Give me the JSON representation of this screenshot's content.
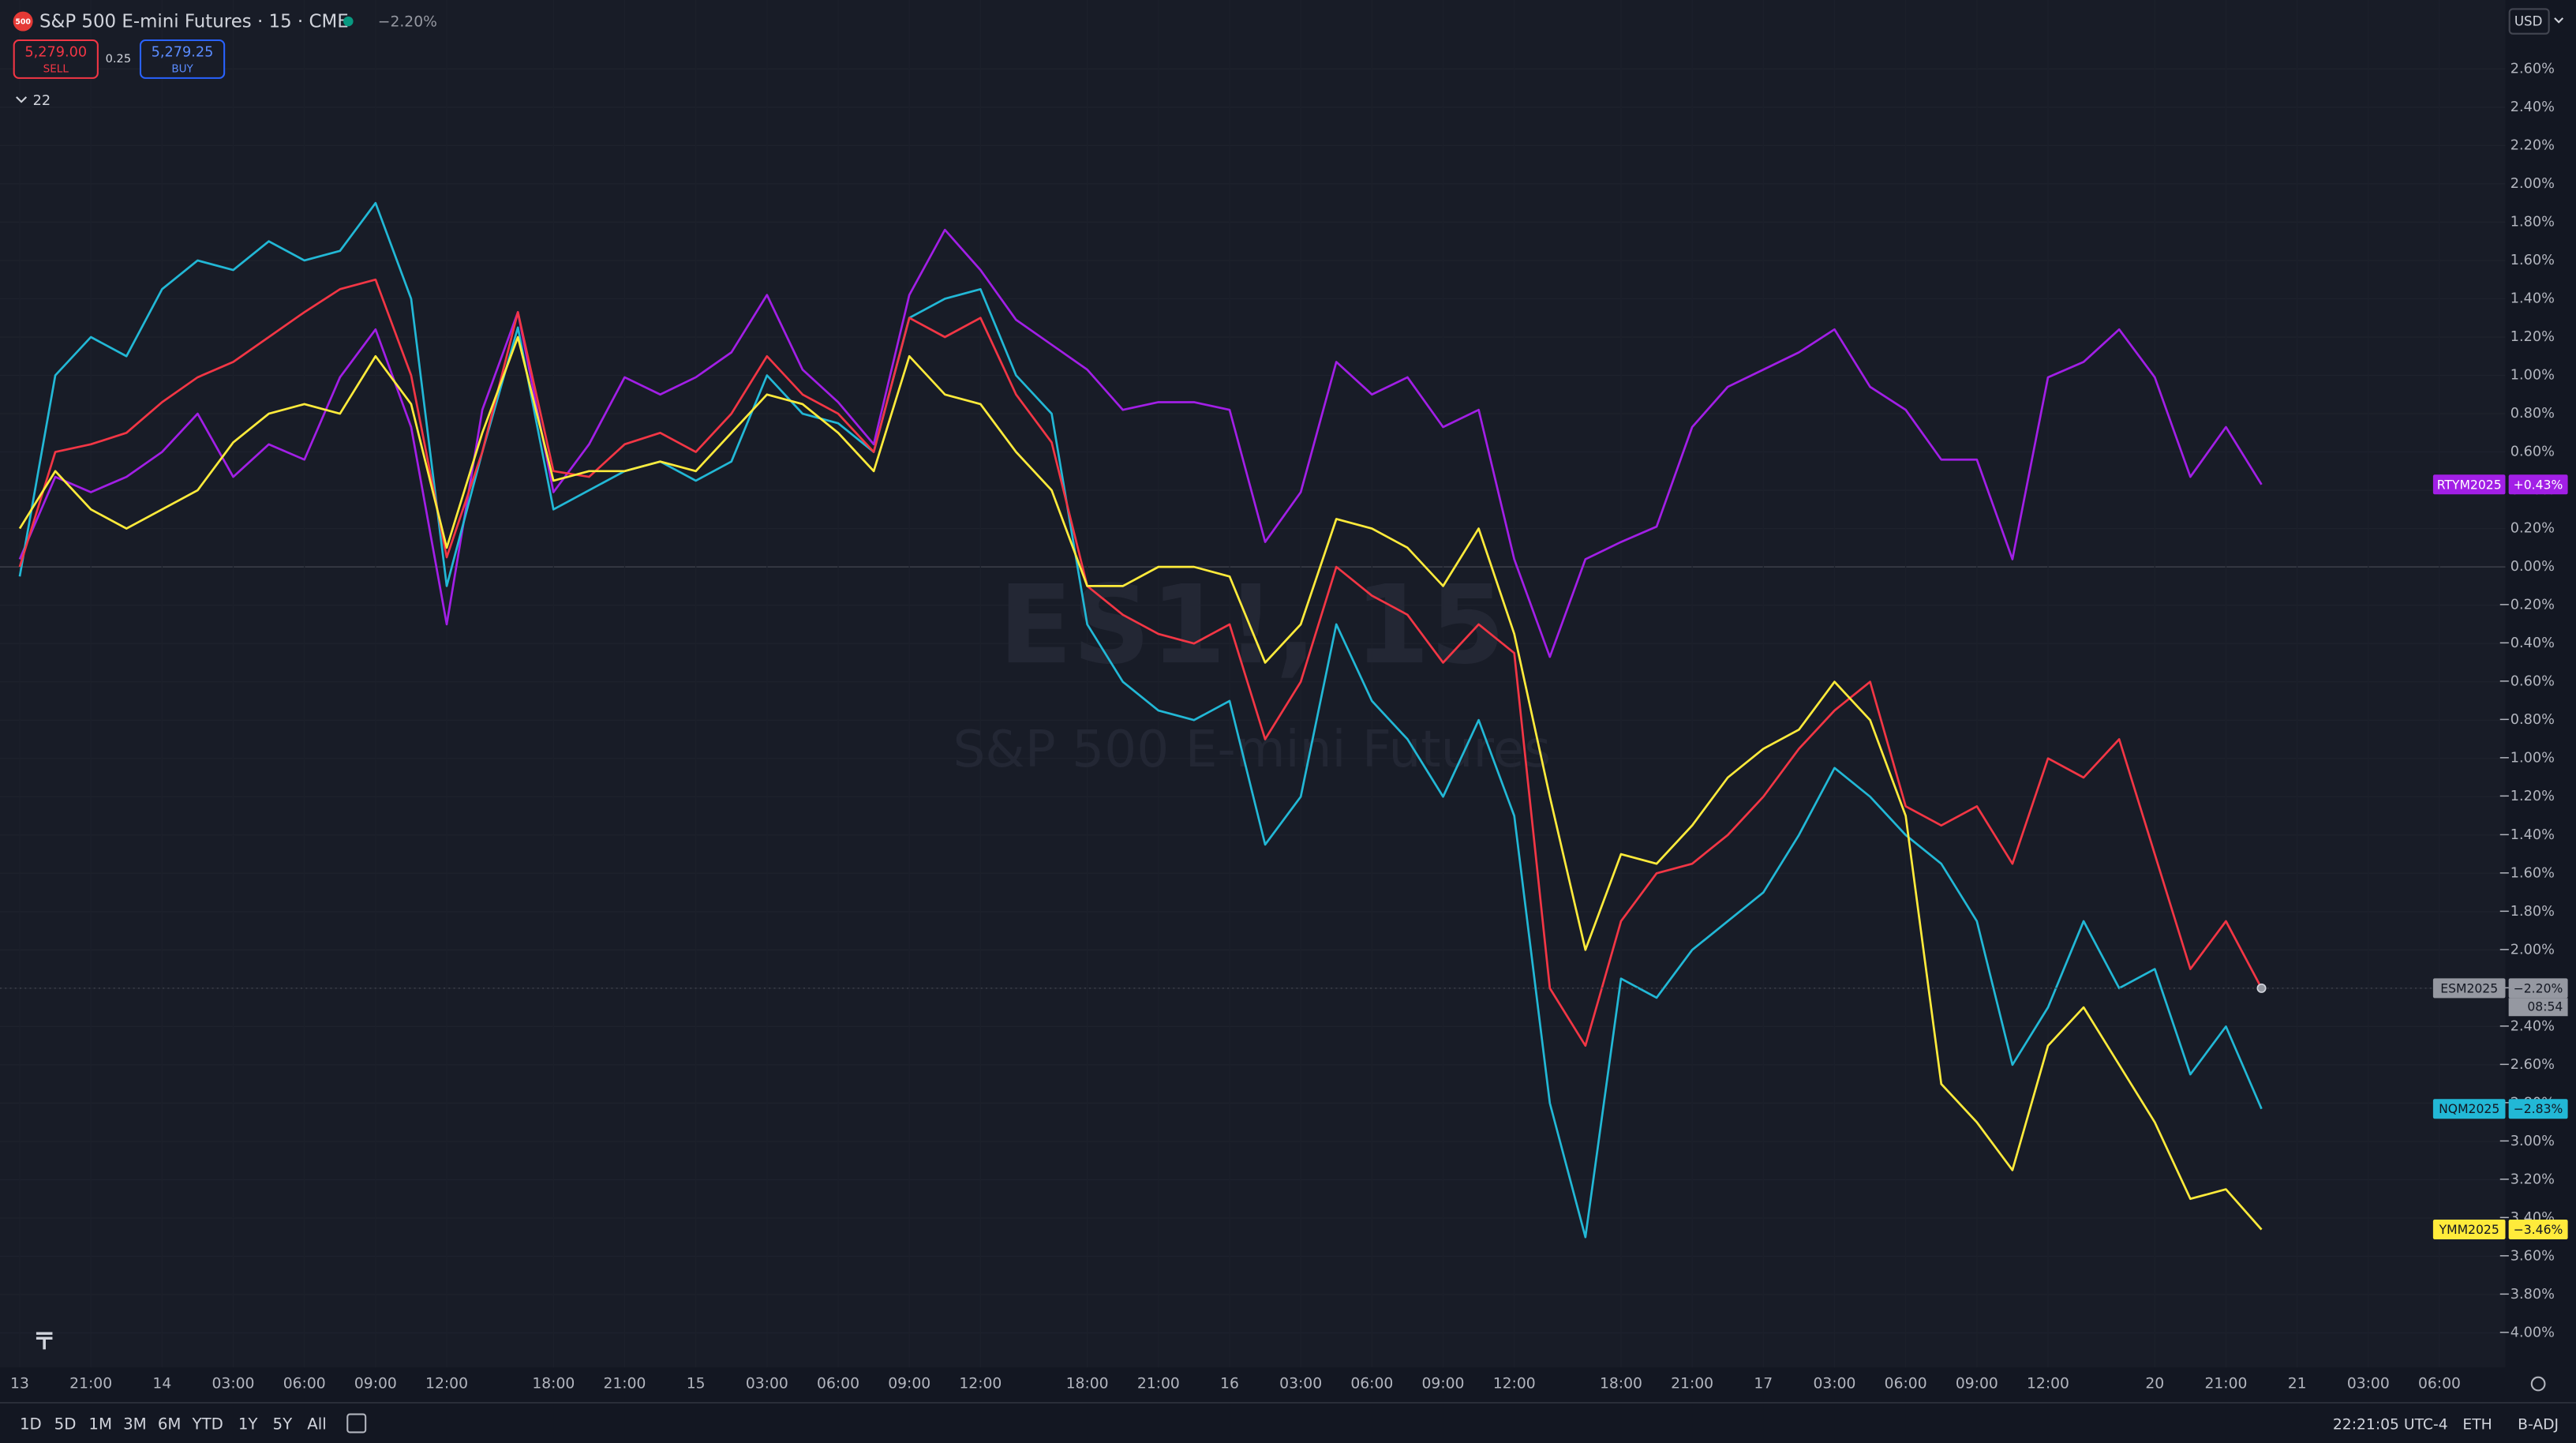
{
  "header": {
    "logo": "500",
    "title": "S&P 500 E-mini Futures · 15 · CME",
    "change": "−2.20%",
    "sell_price": "5,279.00",
    "sell_label": "SELL",
    "spread": "0.25",
    "buy_price": "5,279.25",
    "buy_label": "BUY",
    "indicators": "22",
    "currency": "USD"
  },
  "watermark": {
    "symbol": "ES1!, 15",
    "name": "S&P 500 E-mini Futures"
  },
  "toolbar": {
    "ranges": [
      "1D",
      "5D",
      "1M",
      "3M",
      "6M",
      "YTD",
      "1Y",
      "5Y",
      "All"
    ],
    "clock": "22:21:05 UTC-4",
    "session": "ETH",
    "adjust": "B-ADJ"
  },
  "chart_data": {
    "type": "line",
    "countdown": "08:54",
    "categories": [
      "13",
      null,
      "21:00",
      null,
      "14",
      null,
      "03:00",
      null,
      "06:00",
      null,
      "09:00",
      null,
      "12:00",
      null,
      null,
      "18:00",
      null,
      "21:00",
      null,
      "15",
      null,
      "03:00",
      null,
      "06:00",
      null,
      "09:00",
      null,
      "12:00",
      null,
      null,
      "18:00",
      null,
      "21:00",
      null,
      "16",
      null,
      "03:00",
      null,
      "06:00",
      null,
      "09:00",
      null,
      "12:00",
      null,
      null,
      "18:00",
      null,
      "21:00",
      null,
      "17",
      null,
      "03:00",
      null,
      "06:00",
      null,
      "09:00",
      null,
      "12:00",
      null,
      null,
      "20",
      null,
      "21:00",
      null,
      "21",
      null,
      "03:00",
      null,
      "06:00"
    ],
    "series": [
      {
        "name": "RTYM2025",
        "color": "#a21fe6",
        "values": [
          0.04,
          0.47,
          0.39,
          0.47,
          0.6,
          0.8,
          0.47,
          0.64,
          0.56,
          0.99,
          1.24,
          0.73,
          -0.3,
          0.82,
          1.33,
          0.39,
          0.64,
          0.99,
          0.9,
          0.99,
          1.12,
          1.42,
          1.03,
          0.86,
          0.64,
          1.42,
          1.76,
          1.55,
          1.29,
          1.16,
          1.03,
          0.82,
          0.86,
          0.86,
          0.82,
          0.13,
          0.39,
          1.07,
          0.9,
          0.99,
          0.73,
          0.82,
          0.04,
          -0.47,
          0.04,
          0.13,
          0.21,
          0.73,
          0.94,
          1.03,
          1.12,
          1.24,
          0.94,
          0.82,
          0.56,
          0.56,
          0.04,
          0.99,
          1.07,
          1.24,
          0.99,
          0.47,
          0.73,
          0.43,
          null,
          null,
          null,
          null,
          null
        ],
        "value_labels": [
          null,
          null,
          null,
          null,
          null,
          null,
          null,
          null,
          null,
          null,
          null,
          null,
          null,
          null,
          null,
          null,
          null,
          null,
          null,
          null,
          null,
          null,
          null,
          null,
          null,
          null,
          null,
          null,
          null,
          null,
          null,
          null,
          null,
          null,
          null,
          null,
          null,
          null,
          null,
          null,
          null,
          null,
          null,
          null,
          null,
          null,
          null,
          null,
          null,
          null,
          null,
          null,
          null,
          null,
          null,
          null,
          null,
          null,
          null,
          null,
          null,
          null,
          null,
          "+0.43%",
          null,
          null,
          null,
          null,
          null
        ]
      },
      {
        "name": "NQM2025",
        "color": "#22b8d6",
        "values": [
          -0.05,
          1.0,
          1.2,
          1.1,
          1.45,
          1.6,
          1.55,
          1.7,
          1.6,
          1.65,
          1.9,
          1.4,
          -0.1,
          0.6,
          1.25,
          0.3,
          0.4,
          0.5,
          0.55,
          0.45,
          0.55,
          1.0,
          0.8,
          0.75,
          0.6,
          1.3,
          1.4,
          1.45,
          1.0,
          0.8,
          -0.3,
          -0.6,
          -0.75,
          -0.8,
          -0.7,
          -1.45,
          -1.2,
          -0.3,
          -0.7,
          -0.9,
          -1.2,
          -0.8,
          -1.3,
          -2.8,
          -3.5,
          -2.15,
          -2.25,
          -2.0,
          -1.85,
          -1.7,
          -1.4,
          -1.05,
          -1.2,
          -1.4,
          -1.55,
          -1.85,
          -2.6,
          -2.3,
          -1.85,
          -2.2,
          -2.1,
          -2.65,
          -2.4,
          -2.83,
          null,
          null,
          null,
          null,
          null
        ],
        "value_labels": [
          null,
          null,
          null,
          null,
          null,
          null,
          null,
          null,
          null,
          null,
          null,
          null,
          null,
          null,
          null,
          null,
          null,
          null,
          null,
          null,
          null,
          null,
          null,
          null,
          null,
          null,
          null,
          null,
          null,
          null,
          null,
          null,
          null,
          null,
          null,
          null,
          null,
          null,
          null,
          null,
          null,
          null,
          null,
          null,
          null,
          null,
          null,
          null,
          null,
          null,
          null,
          null,
          null,
          null,
          null,
          null,
          null,
          null,
          null,
          null,
          null,
          null,
          null,
          "−2.83%",
          null,
          null,
          null,
          null,
          null
        ]
      },
      {
        "name": "ESM2025",
        "color": "#f23645",
        "badge_color": "#9598a1",
        "values": [
          0,
          0.6,
          0.64,
          0.7,
          0.86,
          0.99,
          1.07,
          1.2,
          1.33,
          1.45,
          1.5,
          1.0,
          0.05,
          0.6,
          1.33,
          0.5,
          0.47,
          0.64,
          0.7,
          0.6,
          0.8,
          1.1,
          0.9,
          0.8,
          0.6,
          1.3,
          1.2,
          1.3,
          0.9,
          0.65,
          -0.1,
          -0.25,
          -0.35,
          -0.4,
          -0.3,
          -0.9,
          -0.6,
          0,
          -0.15,
          -0.25,
          -0.5,
          -0.3,
          -0.45,
          -2.2,
          -2.5,
          -1.85,
          -1.6,
          -1.55,
          -1.4,
          -1.2,
          -0.95,
          -0.75,
          -0.6,
          -1.25,
          -1.35,
          -1.25,
          -1.55,
          -1.0,
          -1.1,
          -0.9,
          -1.5,
          -2.1,
          -1.85,
          -2.2,
          null,
          null,
          null,
          null,
          null
        ],
        "value_labels": [
          null,
          null,
          null,
          null,
          null,
          null,
          null,
          null,
          null,
          null,
          null,
          null,
          null,
          null,
          null,
          null,
          null,
          null,
          null,
          null,
          null,
          null,
          null,
          null,
          null,
          null,
          null,
          null,
          null,
          null,
          null,
          null,
          null,
          null,
          null,
          null,
          null,
          null,
          null,
          null,
          null,
          null,
          null,
          null,
          null,
          null,
          null,
          null,
          null,
          null,
          null,
          null,
          null,
          null,
          null,
          null,
          null,
          null,
          null,
          null,
          null,
          null,
          null,
          "−2.20%",
          null,
          null,
          null,
          null,
          null
        ]
      },
      {
        "name": "YMM2025",
        "color": "#ffeb3b",
        "values": [
          0.2,
          0.5,
          0.3,
          0.2,
          0.3,
          0.4,
          0.65,
          0.8,
          0.85,
          0.8,
          1.1,
          0.85,
          0.1,
          0.7,
          1.2,
          0.45,
          0.5,
          0.5,
          0.55,
          0.5,
          0.7,
          0.9,
          0.85,
          0.7,
          0.5,
          1.1,
          0.9,
          0.85,
          0.6,
          0.4,
          -0.1,
          -0.1,
          0,
          0,
          -0.05,
          -0.5,
          -0.3,
          0.25,
          0.2,
          0.1,
          -0.1,
          0.2,
          -0.35,
          -1.2,
          -2.0,
          -1.5,
          -1.55,
          -1.35,
          -1.1,
          -0.95,
          -0.85,
          -0.6,
          -0.8,
          -1.3,
          -2.7,
          -2.9,
          -3.15,
          -2.5,
          -2.3,
          -2.6,
          -2.9,
          -3.3,
          -3.25,
          -3.46,
          null,
          null,
          null,
          null,
          null
        ],
        "value_labels": [
          null,
          null,
          null,
          null,
          null,
          null,
          null,
          null,
          null,
          null,
          null,
          null,
          null,
          null,
          null,
          null,
          null,
          null,
          null,
          null,
          null,
          null,
          null,
          null,
          null,
          null,
          null,
          null,
          null,
          null,
          null,
          null,
          null,
          null,
          null,
          null,
          null,
          null,
          null,
          null,
          null,
          null,
          null,
          null,
          null,
          null,
          null,
          null,
          null,
          null,
          null,
          null,
          null,
          null,
          null,
          null,
          null,
          null,
          null,
          null,
          null,
          null,
          null,
          "−3.46%",
          null,
          null,
          null,
          null,
          null
        ]
      }
    ],
    "ylim": [
      -4.18,
      2.96
    ],
    "yticks": [
      {
        "value": 2.6,
        "label": "2.60%"
      },
      {
        "value": 2.4,
        "label": "2.40%"
      },
      {
        "value": 2.2,
        "label": "2.20%"
      },
      {
        "value": 2.0,
        "label": "2.00%"
      },
      {
        "value": 1.8,
        "label": "1.80%"
      },
      {
        "value": 1.6,
        "label": "1.60%"
      },
      {
        "value": 1.4,
        "label": "1.40%"
      },
      {
        "value": 1.2,
        "label": "1.20%"
      },
      {
        "value": 1.0,
        "label": "1.00%"
      },
      {
        "value": 0.8,
        "label": "0.80%"
      },
      {
        "value": 0.6,
        "label": "0.60%"
      },
      {
        "value": 0.4,
        "label": "0.40%"
      },
      {
        "value": 0.2,
        "label": "0.20%"
      },
      {
        "value": 0,
        "label": "0.00%"
      },
      {
        "value": -0.2,
        "label": "−0.20%"
      },
      {
        "value": -0.4,
        "label": "−0.40%"
      },
      {
        "value": -0.6,
        "label": "−0.60%"
      },
      {
        "value": -0.8,
        "label": "−0.80%"
      },
      {
        "value": -1.0,
        "label": "−1.00%"
      },
      {
        "value": -1.2,
        "label": "−1.20%"
      },
      {
        "value": -1.4,
        "label": "−1.40%"
      },
      {
        "value": -1.6,
        "label": "−1.60%"
      },
      {
        "value": -1.8,
        "label": "−1.80%"
      },
      {
        "value": -2.0,
        "label": "−2.00%"
      },
      {
        "value": -2.2,
        "label": "−2.20%"
      },
      {
        "value": -2.4,
        "label": "−2.40%"
      },
      {
        "value": -2.6,
        "label": "−2.60%"
      },
      {
        "value": -2.8,
        "label": "−2.80%"
      },
      {
        "value": -3.0,
        "label": "−3.00%"
      },
      {
        "value": -3.2,
        "label": "−3.20%"
      },
      {
        "value": -3.4,
        "label": "−3.40%"
      },
      {
        "value": -3.6,
        "label": "−3.60%"
      },
      {
        "value": -3.8,
        "label": "−3.80%"
      },
      {
        "value": -4.0,
        "label": "−4.00%"
      }
    ],
    "grid": true
  }
}
